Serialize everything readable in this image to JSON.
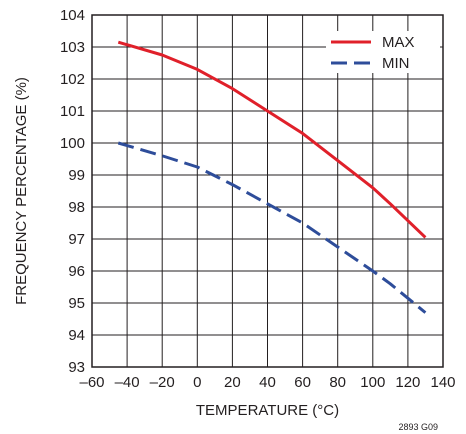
{
  "figure_id": "2893 G09",
  "chart_data": {
    "type": "line",
    "xlabel": "TEMPERATURE (°C)",
    "ylabel": "FREQUENCY PERCENTAGE (%)",
    "xlim": [
      -60,
      140
    ],
    "ylim": [
      93,
      104
    ],
    "x_ticks": [
      -60,
      -40,
      -20,
      0,
      20,
      40,
      60,
      80,
      100,
      120,
      140
    ],
    "x_tick_labels": [
      "–60",
      "–40",
      "–20",
      "0",
      "20",
      "40",
      "60",
      "80",
      "100",
      "120",
      "140"
    ],
    "y_ticks": [
      93,
      94,
      95,
      96,
      97,
      98,
      99,
      100,
      101,
      102,
      103,
      104
    ],
    "grid": true,
    "legend_position": "top-right",
    "series": [
      {
        "name": "MAX",
        "color": "#e0202a",
        "dash": "solid",
        "x": [
          -45,
          -20,
          0,
          20,
          40,
          60,
          80,
          100,
          110,
          130
        ],
        "y": [
          103.15,
          102.75,
          102.3,
          101.7,
          101.0,
          100.3,
          99.45,
          98.6,
          98.1,
          97.05
        ]
      },
      {
        "name": "MIN",
        "color": "#2e4d9a",
        "dash": "dashed",
        "x": [
          -45,
          -20,
          0,
          20,
          40,
          60,
          80,
          100,
          110,
          130
        ],
        "y": [
          100.0,
          99.6,
          99.25,
          98.7,
          98.1,
          97.5,
          96.75,
          96.0,
          95.6,
          94.7
        ]
      }
    ]
  }
}
